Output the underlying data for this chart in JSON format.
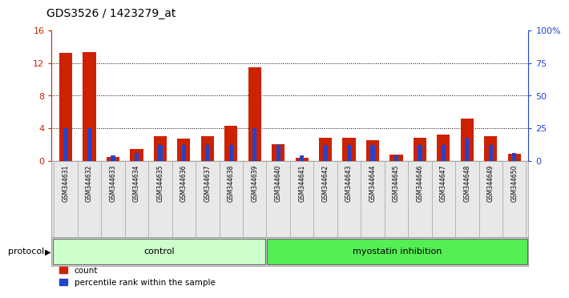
{
  "title": "GDS3526 / 1423279_at",
  "samples": [
    "GSM344631",
    "GSM344632",
    "GSM344633",
    "GSM344634",
    "GSM344635",
    "GSM344636",
    "GSM344637",
    "GSM344638",
    "GSM344639",
    "GSM344640",
    "GSM344641",
    "GSM344642",
    "GSM344643",
    "GSM344644",
    "GSM344645",
    "GSM344646",
    "GSM344647",
    "GSM344648",
    "GSM344649",
    "GSM344650"
  ],
  "count": [
    13.2,
    13.3,
    0.5,
    1.5,
    3.0,
    2.7,
    3.0,
    4.3,
    11.5,
    2.0,
    0.4,
    2.8,
    2.8,
    2.5,
    0.8,
    2.8,
    3.2,
    5.2,
    3.0,
    0.9
  ],
  "percentile": [
    25,
    25,
    4,
    6,
    12,
    12,
    12,
    12,
    25,
    12,
    4,
    12,
    12,
    12,
    4,
    12,
    12,
    18,
    12,
    6
  ],
  "count_color": "#cc2200",
  "percentile_color": "#2244cc",
  "ylim_left": [
    0,
    16
  ],
  "ylim_right": [
    0,
    100
  ],
  "yticks_left": [
    0,
    4,
    8,
    12,
    16
  ],
  "yticks_right": [
    0,
    25,
    50,
    75,
    100
  ],
  "ytick_labels_right": [
    "0",
    "25",
    "50",
    "75",
    "100%"
  ],
  "control_count": 9,
  "control_label": "control",
  "treatment_label": "myostatin inhibition",
  "protocol_label": "protocol",
  "legend_count": "count",
  "legend_pct": "percentile rank within the sample",
  "control_bg": "#ccffcc",
  "treatment_bg": "#55ee55",
  "title_fontsize": 10
}
